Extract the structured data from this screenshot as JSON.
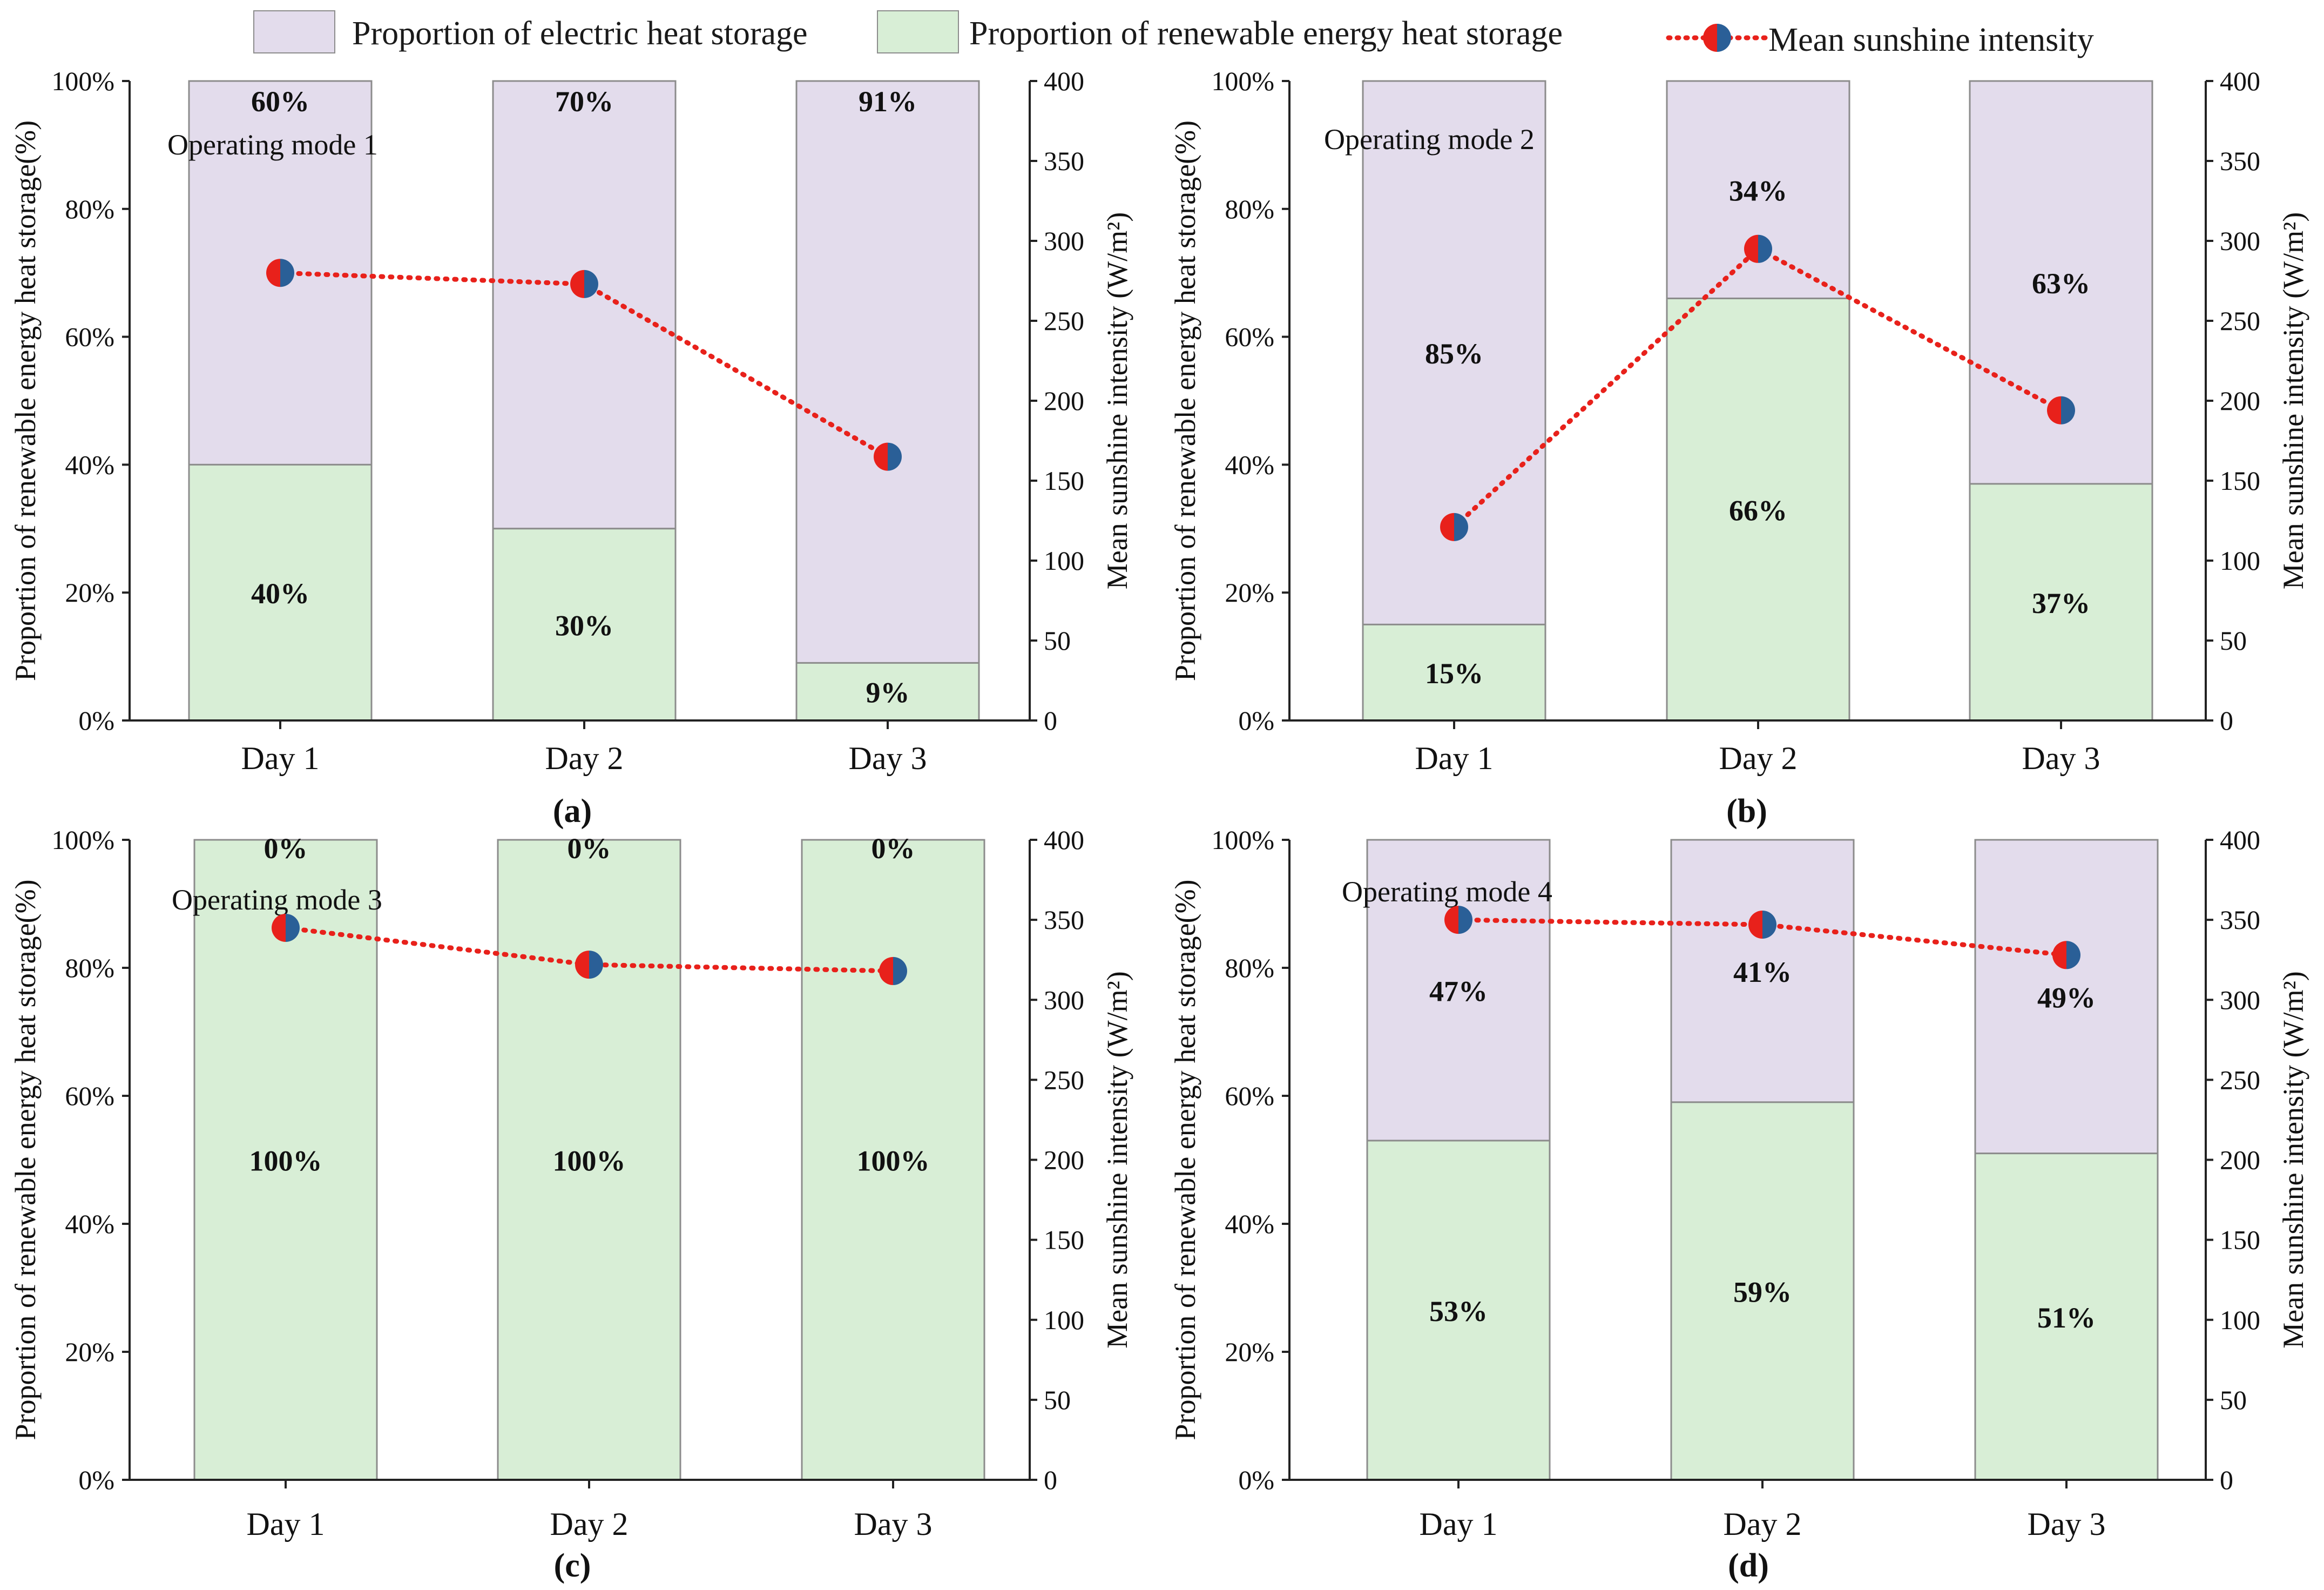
{
  "colors": {
    "electric": "#e3dcec",
    "renewable": "#d8eed6",
    "bar_edge": "#8c8c8c",
    "line": "#e8211b",
    "marker_left": "#e8211b",
    "marker_right": "#2a5f97",
    "axis": "#222222"
  },
  "legend": {
    "electric_label": "Proportion of electric heat storage",
    "renewable_label": "Proportion of renewable energy heat storage",
    "sunshine_label": "Mean sunshine intensity"
  },
  "chart_data": [
    {
      "type": "bar",
      "panel_label": "(a)",
      "mode_label": "Operating mode 1",
      "categories": [
        "Day 1",
        "Day 2",
        "Day 3"
      ],
      "series": [
        {
          "name": "Proportion of renewable energy heat storage",
          "values": [
            40,
            30,
            9
          ],
          "labels": [
            "40%",
            "30%",
            "9%"
          ]
        },
        {
          "name": "Proportion of electric heat storage",
          "values": [
            60,
            70,
            91
          ],
          "labels": [
            "60%",
            "70%",
            "91%"
          ]
        },
        {
          "name": "Mean sunshine intensity",
          "axis": "right",
          "values": [
            280,
            273,
            165
          ]
        }
      ],
      "ylabel": "Proportion of renewable energy heat storage(%)",
      "y2label": "Mean sunshine intensity (W/m²)",
      "ylim": [
        0,
        100
      ],
      "y2lim": [
        0,
        400
      ],
      "yticks": [
        "0%",
        "20%",
        "40%",
        "60%",
        "80%",
        "100%"
      ],
      "y2ticks": [
        "0",
        "50",
        "100",
        "150",
        "200",
        "250",
        "300",
        "350",
        "400"
      ]
    },
    {
      "type": "bar",
      "panel_label": "(b)",
      "mode_label": "Operating mode 2",
      "categories": [
        "Day 1",
        "Day 2",
        "Day 3"
      ],
      "series": [
        {
          "name": "Proportion of renewable energy heat storage",
          "values": [
            15,
            66,
            37
          ],
          "labels": [
            "15%",
            "66%",
            "37%"
          ]
        },
        {
          "name": "Proportion of electric heat storage",
          "values": [
            85,
            34,
            63
          ],
          "labels": [
            "85%",
            "34%",
            "63%"
          ]
        },
        {
          "name": "Mean sunshine intensity",
          "axis": "right",
          "values": [
            121,
            295,
            194
          ]
        }
      ],
      "ylabel": "Proportion of renewable energy heat storage(%)",
      "y2label": "Mean sunshine intensity (W/m²)",
      "ylim": [
        0,
        100
      ],
      "y2lim": [
        0,
        400
      ],
      "yticks": [
        "0%",
        "20%",
        "40%",
        "60%",
        "80%",
        "100%"
      ],
      "y2ticks": [
        "0",
        "50",
        "100",
        "150",
        "200",
        "250",
        "300",
        "350",
        "400"
      ]
    },
    {
      "type": "bar",
      "panel_label": "(c)",
      "mode_label": "Operating mode 3",
      "categories": [
        "Day 1",
        "Day 2",
        "Day 3"
      ],
      "series": [
        {
          "name": "Proportion of renewable energy heat storage",
          "values": [
            100,
            100,
            100
          ],
          "labels": [
            "100%",
            "100%",
            "100%"
          ]
        },
        {
          "name": "Proportion of electric heat storage",
          "values": [
            0,
            0,
            0
          ],
          "labels": [
            "0%",
            "0%",
            "0%"
          ]
        },
        {
          "name": "Mean sunshine intensity",
          "axis": "right",
          "values": [
            345,
            322,
            318
          ]
        }
      ],
      "ylabel": "Proportion of renewable energy heat storage(%)",
      "y2label": "Mean sunshine intensity (W/m²)",
      "ylim": [
        0,
        100
      ],
      "y2lim": [
        0,
        400
      ],
      "yticks": [
        "0%",
        "20%",
        "40%",
        "60%",
        "80%",
        "100%"
      ],
      "y2ticks": [
        "0",
        "50",
        "100",
        "150",
        "200",
        "250",
        "300",
        "350",
        "400"
      ]
    },
    {
      "type": "bar",
      "panel_label": "(d)",
      "mode_label": "Operating mode 4",
      "categories": [
        "Day 1",
        "Day 2",
        "Day 3"
      ],
      "series": [
        {
          "name": "Proportion of renewable energy heat storage",
          "values": [
            53,
            59,
            51
          ],
          "labels": [
            "53%",
            "59%",
            "51%"
          ]
        },
        {
          "name": "Proportion of electric heat storage",
          "values": [
            47,
            41,
            49
          ],
          "labels": [
            "47%",
            "41%",
            "49%"
          ]
        },
        {
          "name": "Mean sunshine intensity",
          "axis": "right",
          "values": [
            350,
            347,
            328
          ]
        }
      ],
      "ylabel": "Proportion of renewable energy heat storage(%)",
      "y2label": "Mean sunshine intensity (W/m²)",
      "ylim": [
        0,
        100
      ],
      "y2lim": [
        0,
        400
      ],
      "yticks": [
        "0%",
        "20%",
        "40%",
        "60%",
        "80%",
        "100%"
      ],
      "y2ticks": [
        "0",
        "50",
        "100",
        "150",
        "200",
        "250",
        "300",
        "350",
        "400"
      ]
    }
  ]
}
